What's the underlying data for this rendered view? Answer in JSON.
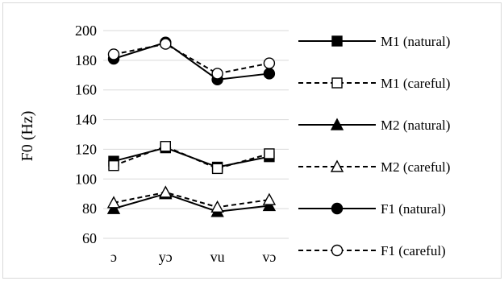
{
  "chart_data": {
    "type": "line",
    "title": "",
    "xlabel": "",
    "ylabel": "F0 (Hz)",
    "ylim": [
      60,
      200
    ],
    "yticks": [
      60,
      80,
      100,
      120,
      140,
      160,
      180,
      200
    ],
    "grid": "horizontal",
    "legend_position": "right",
    "categories": [
      "ɔ",
      "yɔ",
      "vu",
      "vɔ"
    ],
    "series": [
      {
        "name": "M1 (natural)",
        "values": [
          112,
          121,
          108,
          115
        ],
        "marker": "square",
        "fill": "filled",
        "dash": "solid"
      },
      {
        "name": "M1 (careful)",
        "values": [
          109,
          122,
          107,
          117
        ],
        "marker": "square",
        "fill": "open",
        "dash": "dashed"
      },
      {
        "name": "M2 (natural)",
        "values": [
          80,
          90,
          78,
          82
        ],
        "marker": "triangle",
        "fill": "filled",
        "dash": "solid"
      },
      {
        "name": "M2 (careful)",
        "values": [
          84,
          91,
          81,
          86
        ],
        "marker": "triangle",
        "fill": "open",
        "dash": "dashed"
      },
      {
        "name": "F1 (natural)",
        "values": [
          181,
          192,
          167,
          171
        ],
        "marker": "circle",
        "fill": "filled",
        "dash": "solid"
      },
      {
        "name": "F1 (careful)",
        "values": [
          184,
          191,
          171,
          178
        ],
        "marker": "circle",
        "fill": "open",
        "dash": "dashed"
      }
    ],
    "colors": {
      "line": "#000000",
      "grid": "#d9d9d9",
      "border": "#d9d9d9"
    }
  }
}
